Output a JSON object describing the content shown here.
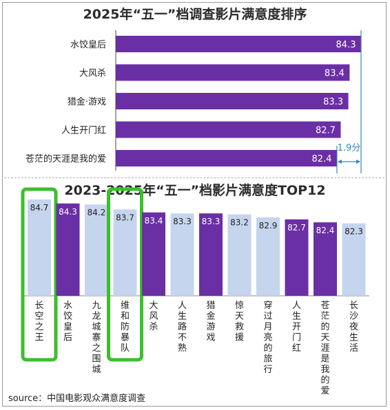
{
  "chart_data": [
    {
      "type": "bar",
      "orientation": "horizontal",
      "title": "2025年“五一”档调查影片满意度排序",
      "categories": [
        "水饺皇后",
        "大风杀",
        "猎金·游戏",
        "人生开门红",
        "苍茫的天涯是我的爱"
      ],
      "values": [
        84.3,
        83.4,
        83.3,
        82.7,
        82.4
      ],
      "annotation": "1.9分",
      "bar_color": "#6b2fa5",
      "annotation_color": "#2e86c1"
    },
    {
      "type": "bar",
      "orientation": "vertical",
      "title": "2023-2025年“五一”档影片满意度TOP12",
      "categories": [
        "长空之王",
        "水饺皇后",
        "九龙城寨之围城",
        "维和防暴队",
        "大风杀",
        "人生路不熟",
        "猎金游戏",
        "惊天救援",
        "穿过月亮的旅行",
        "人生开门红",
        "苍茫的天涯是我的爱",
        "长沙夜生活"
      ],
      "values": [
        84.7,
        84.3,
        84.2,
        83.7,
        83.4,
        83.3,
        83.3,
        83.2,
        82.9,
        82.7,
        82.4,
        82.3
      ],
      "colors": [
        "#c5d5ee",
        "#6b2fa5",
        "#c5d5ee",
        "#c5d5ee",
        "#6b2fa5",
        "#c5d5ee",
        "#6b2fa5",
        "#c5d5ee",
        "#c5d5ee",
        "#6b2fa5",
        "#6b2fa5",
        "#c5d5ee"
      ],
      "highlighted": [
        "长空之王",
        "维和防暴队"
      ],
      "highlight_color": "#3bbf2c"
    }
  ],
  "source": "source：中国电影观众满意度调查"
}
